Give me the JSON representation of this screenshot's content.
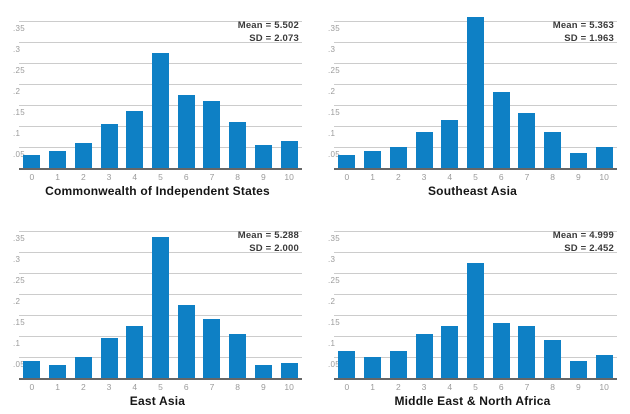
{
  "palette": {
    "bar_color": "#0e80c5",
    "gridline_color": "#cccccc",
    "axis_color": "#666666",
    "tick_label_color": "#9b9b9b",
    "annotation_color": "#3a3a3a",
    "title_color": "#151515"
  },
  "axes": {
    "x_tick_labels": [
      "0",
      "1",
      "2",
      "3",
      "4",
      "5",
      "6",
      "7",
      "8",
      "9",
      "10"
    ],
    "y_tick_labels": [
      ".05",
      ".1",
      ".15",
      ".2",
      ".25",
      ".3",
      ".35"
    ],
    "y_tick_values": [
      0.05,
      0.1,
      0.15,
      0.2,
      0.25,
      0.3,
      0.35
    ],
    "y_max": 0.3667,
    "grid": true
  },
  "chart_data": [
    {
      "type": "bar",
      "title": "Commonwealth of Independent States",
      "categories": [
        0,
        1,
        2,
        3,
        4,
        5,
        6,
        7,
        8,
        9,
        10
      ],
      "values": [
        0.03,
        0.04,
        0.06,
        0.105,
        0.135,
        0.275,
        0.175,
        0.16,
        0.11,
        0.055,
        0.065
      ],
      "mean": 5.502,
      "sd": 2.073,
      "mean_label": "Mean = 5.502",
      "sd_label": "SD = 2.073",
      "xlabel": "",
      "ylabel": "",
      "ylim": [
        0,
        0.3667
      ],
      "legend_position": "none"
    },
    {
      "type": "bar",
      "title": "Southeast Asia",
      "categories": [
        0,
        1,
        2,
        3,
        4,
        5,
        6,
        7,
        8,
        9,
        10
      ],
      "values": [
        0.03,
        0.04,
        0.05,
        0.085,
        0.115,
        0.36,
        0.18,
        0.13,
        0.085,
        0.035,
        0.05
      ],
      "mean": 5.363,
      "sd": 1.963,
      "mean_label": "Mean = 5.363",
      "sd_label": "SD = 1.963",
      "xlabel": "",
      "ylabel": "",
      "ylim": [
        0,
        0.3667
      ],
      "legend_position": "none"
    },
    {
      "type": "bar",
      "title": "East Asia",
      "categories": [
        0,
        1,
        2,
        3,
        4,
        5,
        6,
        7,
        8,
        9,
        10
      ],
      "values": [
        0.04,
        0.03,
        0.05,
        0.095,
        0.125,
        0.335,
        0.175,
        0.14,
        0.105,
        0.03,
        0.035
      ],
      "mean": 5.288,
      "sd": 2.0,
      "mean_label": "Mean = 5.288",
      "sd_label": "SD = 2.000",
      "xlabel": "",
      "ylabel": "",
      "ylim": [
        0,
        0.3667
      ],
      "legend_position": "none"
    },
    {
      "type": "bar",
      "title": "Middle East & North Africa",
      "categories": [
        0,
        1,
        2,
        3,
        4,
        5,
        6,
        7,
        8,
        9,
        10
      ],
      "values": [
        0.065,
        0.05,
        0.065,
        0.105,
        0.125,
        0.275,
        0.13,
        0.125,
        0.09,
        0.04,
        0.055
      ],
      "mean": 4.999,
      "sd": 2.452,
      "mean_label": "Mean = 4.999",
      "sd_label": "SD = 2.452",
      "xlabel": "",
      "ylabel": "",
      "ylim": [
        0,
        0.3667
      ],
      "legend_position": "none"
    }
  ]
}
